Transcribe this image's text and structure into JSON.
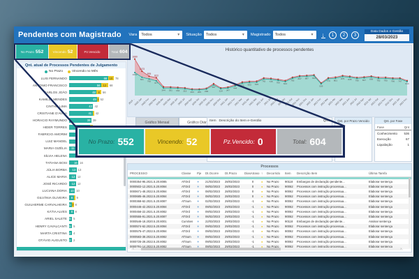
{
  "colors": {
    "teal": "#29b2a4",
    "yellow": "#e9c827",
    "red": "#c32b39",
    "gray": "#b4b8bb",
    "header_blue": "#2273bd",
    "navy_annotation": "#1a2b5c",
    "red_line": "#c0392b"
  },
  "header": {
    "title": "Pendentes com Magistrado",
    "filters": [
      {
        "label": "Vara",
        "value": "Todos"
      },
      {
        "label": "Situação",
        "value": "Todos"
      },
      {
        "label": "Magistrado",
        "value": "Todos"
      }
    ],
    "download_icon": "download-icon",
    "page_buttons": [
      "1",
      "2",
      "3"
    ],
    "date_label": "Data Dados e-Gestão",
    "date_value": "28/03/2023"
  },
  "kpi": {
    "small": [
      {
        "label": "No Prazo",
        "value": "552"
      },
      {
        "label": "Vincendo",
        "value": "52"
      },
      {
        "label": "Pz.Vencido",
        "value": ""
      },
      {
        "label": "Total",
        "value": "604"
      }
    ],
    "callout": [
      {
        "label": "No Prazo:",
        "value": "552"
      },
      {
        "label": "Vincendo:",
        "value": "52"
      },
      {
        "label": "Pz.Vencido:",
        "value": "0"
      },
      {
        "label": "Total:",
        "value": "604"
      }
    ]
  },
  "left_panel": {
    "title": "Qnt. atual de Processos Pendentes de Julgamento",
    "legend": [
      "No Prazo",
      "Vincendo no Mês"
    ]
  },
  "main_chart": {
    "title": "Histórico quantitativo de processos pendentes"
  },
  "tabs": [
    {
      "label": "Gráfico Mensal",
      "active": true
    },
    {
      "label": "Gráfico Diário",
      "active": false
    }
  ],
  "item_table": {
    "headers": [
      "Item",
      "Descrição do Item e-Gestão",
      "Qnt."
    ]
  },
  "prazo_panel": {
    "title": "Qnt. por Prazo Vencido"
  },
  "fase_panel": {
    "title": "Qnt. por Fase",
    "headers": [
      "Fase",
      "Qnt"
    ]
  },
  "process_table": {
    "title": "Processos",
    "headers": [
      "PROCESSO",
      "Classe",
      "Pje",
      "Dt.Ocorre",
      "Dt.Prazo",
      "DiasAtraso",
      "↑",
      "Decorrido",
      "Item",
      "Descrição Item",
      "Última Tarefa"
    ],
    "rows": [
      [
        "0000354-95.2021.5.20.8085",
        "ATOrd",
        "21/03/2023",
        "28/03/2023",
        "0",
        "No Prazo",
        "90118",
        "Embargos de declaração pendente...",
        "Elaborar sentença"
      ],
      [
        "0000502-12.2021.5.20.8084",
        "ATOrd",
        "08/02/2023",
        "28/03/2023",
        "0",
        "No Prazo",
        "90062",
        "Processos com instrução processua...",
        "Elaborar sentença"
      ],
      [
        "0000671-48.2022.5.20.8084",
        "ATOrd",
        "08/02/2023",
        "28/03/2023",
        "0",
        "No Prazo",
        "90062",
        "Processos com instrução processua...",
        "Elaborar sentença"
      ],
      [
        "0000685-46.2022.5.20.8084",
        "ATOrd",
        "08/02/2023",
        "28/03/2023",
        "0",
        "No Prazo",
        "90062",
        "Processos com instrução processua...",
        "Elaborar sentença"
      ],
      [
        "0000368-62.2021.5.20.8087",
        "ATSum",
        "02/02/2023",
        "29/03/2023",
        "-1",
        "No Prazo",
        "90062",
        "Processos com instrução processua...",
        "Elaborar sentença"
      ],
      [
        "0000446-42.2022.5.20.8084",
        "ATOrd",
        "09/02/2023",
        "29/03/2023",
        "-1",
        "No Prazo",
        "90062",
        "Processos com instrução processua...",
        "Elaborar sentença"
      ],
      [
        "0000456-22.2021.5.20.8082",
        "ATOrd",
        "09/02/2023",
        "29/03/2023",
        "-1",
        "No Prazo",
        "90062",
        "Processos com instrução processua...",
        "Elaborar sentença"
      ],
      [
        "0000555-91.2021.5.20.8087",
        "ATOrd",
        "06/02/2023",
        "29/03/2023",
        "-1",
        "No Prazo",
        "90062",
        "Processos com instrução processua...",
        "Elaborar sentença"
      ],
      [
        "0000546-18.2020.5.20.8001",
        "CumSen",
        "22/03/2023",
        "29/03/2023",
        "-1",
        "No Prazo",
        "90118",
        "Embargos de declaração pendente...",
        "Assinar sentença"
      ],
      [
        "0000574-62.2022.5.20.8084",
        "ATOrd",
        "09/02/2023",
        "29/03/2023",
        "-1",
        "No Prazo",
        "90062",
        "Processos com instrução processua...",
        "Elaborar sentença"
      ],
      [
        "0000575-47.2022.5.20.8084",
        "ATOrd",
        "09/02/2023",
        "29/03/2023",
        "-1",
        "No Prazo",
        "90062",
        "Processos com instrução processua...",
        "Elaborar sentença"
      ],
      [
        "0000583-38.2022.5.20.8082",
        "ATSum",
        "09/02/2023",
        "29/03/2023",
        "-1",
        "No Prazo",
        "90062",
        "Processos com instrução processua...",
        "Elaborar sentença"
      ],
      [
        "0000725-28.2022.5.20.8082",
        "ATSum",
        "09/02/2023",
        "29/03/2023",
        "-1",
        "No Prazo",
        "90062",
        "Processos com instrução processua...",
        "Elaborar sentença"
      ],
      [
        "0000791-14.2022.5.20.8082",
        "ATSum",
        "09/02/2023",
        "29/03/2023",
        "-1",
        "No Prazo",
        "90062",
        "Processos com instrução processua...",
        "Elaborar sentença"
      ]
    ]
  },
  "chart_data": [
    {
      "type": "area",
      "title": "Histórico quantitativo de processos pendentes",
      "x": [
        "2019 ...",
        "2020 Jan",
        "2020 Fev",
        "2020 Mar",
        "2020 Abr",
        "2020 Mai",
        "2020 Jun",
        "2020 Jul",
        "2020 Ago",
        "2020 Set",
        "2020 Out",
        "2020 Nov",
        "2020 Dez",
        "2021 Jan",
        "2021 Fev",
        "2021 Mar",
        "2021 Abr",
        "2021 Mai",
        "2021 Jun",
        "2021 Jul",
        "2021 Ago",
        "2021 Set",
        "2021 Out",
        "2021 Nov",
        "2021 Dez",
        "2022 Jan",
        "2022 Fev",
        "2022 Mar",
        "2022 Abr",
        "2022 Mai",
        "2022 Jun",
        "2022 Jul",
        "2022 Ago",
        "2022 Set",
        "2022 Out",
        "2022 Nov",
        "2022 Dez",
        "2023 Jan",
        "2023 Fev"
      ],
      "series": [
        {
          "name": "No Prazo",
          "color": "#29b2a4",
          "values": [
            1062,
            841,
            765,
            677,
            344,
            351,
            334,
            315,
            263,
            265,
            296,
            487,
            314,
            347,
            444,
            573,
            603,
            615,
            762,
            745,
            700,
            644,
            793,
            867,
            887,
            912,
            539,
            773,
            801,
            875,
            845,
            790,
            817,
            856,
            792,
            793,
            766,
            767,
            644
          ]
        },
        {
          "name": "Total",
          "color": "#c0392b",
          "values": [
            1680,
            1123,
            895,
            823,
            405,
            395,
            378,
            356,
            302,
            300,
            335,
            545,
            352,
            392,
            492,
            625,
            652,
            662,
            812,
            792,
            748,
            692,
            842,
            912,
            928,
            952,
            582,
            818,
            848,
            918,
            888,
            832,
            858,
            898,
            838,
            838,
            808,
            808,
            688
          ]
        }
      ],
      "ylim": [
        0,
        1800
      ],
      "legend_position": "none"
    },
    {
      "type": "bar",
      "orientation": "horizontal",
      "title": "Qnt. atual de Processos Pendentes de Julgamento",
      "legend": [
        "No Prazo",
        "Vincendo no Mês"
      ],
      "rows": [
        [
          "LUIS FERNANDO",
          68,
          10,
          "78"
        ],
        [
          "ANTONIO FRANCISCO",
          56,
          12,
          "68"
        ],
        [
          "CARLOS JOÃO",
          48,
          8,
          "56"
        ],
        [
          "KAMILLA MENDES",
          49,
          3,
          "52"
        ],
        [
          "CINTHIA LIMA",
          42,
          0,
          "42"
        ],
        [
          "CRISTIANE D'AVILA",
          41,
          1,
          "42"
        ],
        [
          "HORACIO RAYMUNDO",
          39,
          0,
          "39"
        ],
        [
          "HIDER TORRES",
          36,
          5,
          "41"
        ],
        [
          "FABRICIO AMORIM",
          23,
          0,
          "23"
        ],
        [
          "LUIZ MANOEL",
          20,
          4,
          "24"
        ],
        [
          "MARIA GIZÉLIA",
          11,
          3,
          "14"
        ],
        [
          "SÍLVIA HELENA",
          18,
          0,
          "18"
        ],
        [
          "TATIANA BOSI",
          16,
          0,
          "16"
        ],
        [
          "JÚLIA BORBA",
          13,
          0,
          "13"
        ],
        [
          "ALICE MARIA",
          12,
          0,
          "12"
        ],
        [
          "JOSÉ RICARDO",
          12,
          0,
          "12"
        ],
        [
          "LUCIANA DORIA",
          10,
          0,
          "10"
        ],
        [
          "GILVÂNIA OLIVEIRA",
          8,
          1,
          "9"
        ],
        [
          "GUILHERME CARVALHEIRA",
          5,
          3,
          "8"
        ],
        [
          "KÁTIA ALVES",
          8,
          0,
          "8"
        ],
        [
          "ARIEL SALETE",
          5,
          0,
          "5"
        ],
        [
          "HENRY CAVALCANTI",
          5,
          0,
          "5"
        ],
        [
          "MARTA CRISTINA",
          4,
          0,
          "4"
        ],
        [
          "OTÁVIO AUGUSTO",
          2,
          0,
          "2"
        ]
      ]
    },
    {
      "type": "table",
      "title": "Qnt. por Fase",
      "headers": [
        "Fase",
        "Qnt"
      ],
      "rows": [
        [
          "Conhecimento",
          "536"
        ],
        [
          "Execução",
          "67"
        ],
        [
          "Liquidação",
          "1"
        ]
      ]
    }
  ]
}
